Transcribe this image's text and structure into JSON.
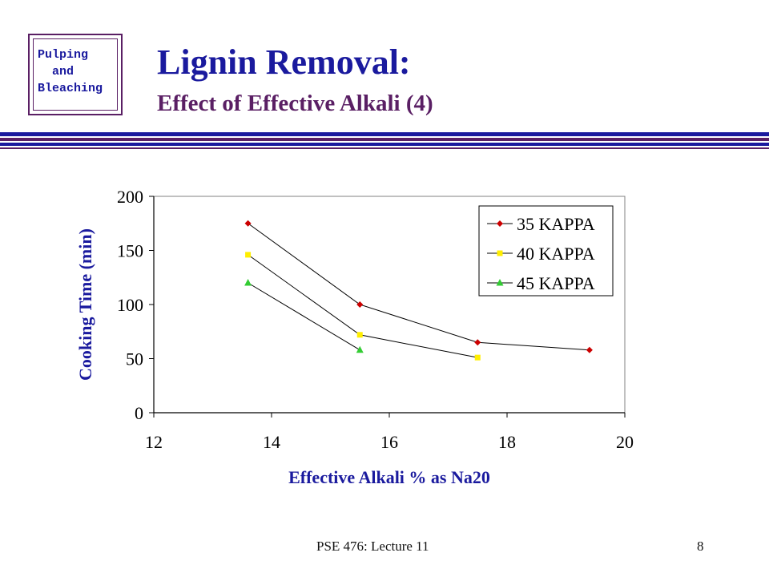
{
  "logo": {
    "lines": [
      "Pulping",
      "  and",
      "Bleaching"
    ]
  },
  "slide": {
    "title": "Lignin Removal:",
    "subtitle": "Effect of Effective Alkali (4)",
    "footer_left": "PSE 476: Lecture 11",
    "page_number": "8"
  },
  "colors": {
    "title_blue": "#1a1a9e",
    "purple": "#5a1f64",
    "series_35": "#cc0000",
    "series_40": "#ffee00",
    "series_45": "#33cc33"
  },
  "chart_data": {
    "type": "line",
    "xlabel": "Effective Alkali % as Na20",
    "ylabel": "Cooking Time (min)",
    "xlim": [
      12,
      20
    ],
    "ylim": [
      0,
      200
    ],
    "xticks": [
      12,
      14,
      16,
      18,
      20
    ],
    "yticks": [
      0,
      50,
      100,
      150,
      200
    ],
    "grid": false,
    "legend": "top-right",
    "series": [
      {
        "name": "35 KAPPA",
        "marker": "diamond",
        "color": "#cc0000",
        "x": [
          13.6,
          15.5,
          17.5,
          19.4
        ],
        "y": [
          175,
          100,
          65,
          58
        ]
      },
      {
        "name": "40 KAPPA",
        "marker": "square",
        "color": "#ffee00",
        "x": [
          13.6,
          15.5,
          17.5
        ],
        "y": [
          146,
          72,
          51
        ]
      },
      {
        "name": "45 KAPPA",
        "marker": "triangle",
        "color": "#33cc33",
        "x": [
          13.6,
          15.5
        ],
        "y": [
          120,
          58
        ]
      }
    ]
  }
}
